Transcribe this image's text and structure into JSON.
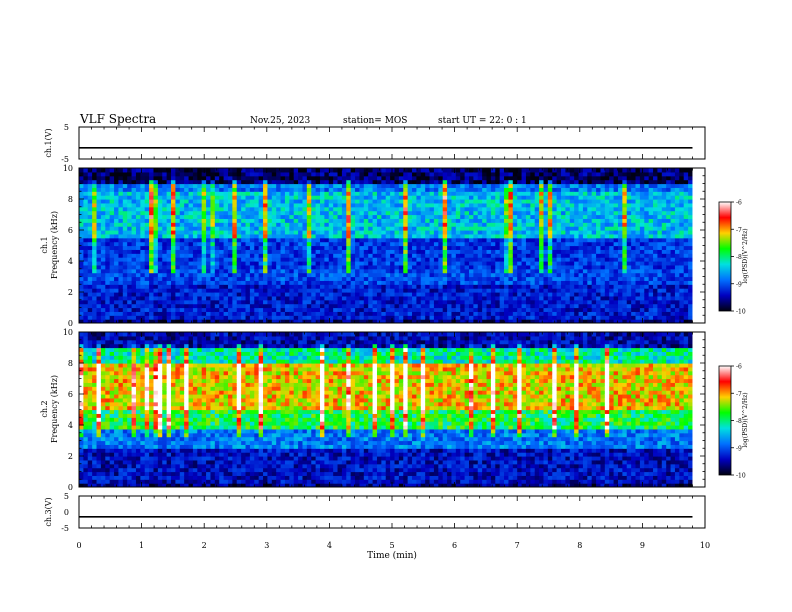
{
  "header": {
    "title": "VLF Spectra",
    "date": "Nov.25, 2023",
    "station": "station= MOS",
    "start": "start  UT =   22: 0  : 1"
  },
  "colorbar": {
    "label": "log(PSD)(V^2/Hz)",
    "ticks": [
      "-6",
      "-7",
      "-8",
      "-9",
      "-10"
    ],
    "stops": [
      "#ffffff",
      "#ff0000",
      "#ffd000",
      "#00ff00",
      "#00e0e0",
      "#0070ff",
      "#0000c0",
      "#000010"
    ]
  },
  "chart_data": [
    {
      "type": "line",
      "panel": "ch.1 waveform",
      "ylabel": "ch.1(V)",
      "ylim": [
        -5,
        5
      ],
      "yticks": [
        "5",
        "-5"
      ],
      "x": [
        0,
        9.8
      ],
      "y": [
        -1.5,
        -1.5
      ]
    },
    {
      "type": "heatmap",
      "panel": "ch.1 spectrogram",
      "ylabel": "ch.1\nFrequency (kHz)",
      "ylabel_lines": [
        "ch.1",
        "Frequency (kHz)"
      ],
      "ylim": [
        0,
        10
      ],
      "yticks": [
        "0",
        "2",
        "4",
        "6",
        "8",
        "10"
      ],
      "xlim": [
        0,
        10
      ],
      "data_xmax": 9.8,
      "value_range": [
        -10,
        -6
      ],
      "bands": [
        {
          "f": [
            0,
            0.3
          ],
          "v": -9.6
        },
        {
          "f": [
            0.3,
            2.5
          ],
          "v": -9.2
        },
        {
          "f": [
            2.5,
            3.5
          ],
          "v": -8.9
        },
        {
          "f": [
            3.5,
            5.5
          ],
          "v": -9.0
        },
        {
          "f": [
            5.5,
            8.5
          ],
          "v": -8.2
        },
        {
          "f": [
            8.5,
            9.0
          ],
          "v": -8.6
        },
        {
          "f": [
            9.0,
            10
          ],
          "v": -9.7
        }
      ]
    },
    {
      "type": "heatmap",
      "panel": "ch.2 spectrogram",
      "ylabel": "ch.2\nFrequency (kHz)",
      "ylabel_lines": [
        "ch.2",
        "Frequency (kHz)"
      ],
      "ylim": [
        0,
        10
      ],
      "yticks": [
        "0",
        "2",
        "4",
        "6",
        "8",
        "10"
      ],
      "xlim": [
        0,
        10
      ],
      "data_xmax": 9.8,
      "value_range": [
        -10,
        -6
      ],
      "bands": [
        {
          "f": [
            0,
            0.3
          ],
          "v": -9.6
        },
        {
          "f": [
            0.3,
            2.6
          ],
          "v": -9.3
        },
        {
          "f": [
            2.6,
            3.8
          ],
          "v": -8.6
        },
        {
          "f": [
            3.8,
            5.0
          ],
          "v": -7.6
        },
        {
          "f": [
            5.0,
            8.0
          ],
          "v": -6.9
        },
        {
          "f": [
            8.0,
            9.0
          ],
          "v": -7.9
        },
        {
          "f": [
            9.0,
            10
          ],
          "v": -9.4
        }
      ]
    },
    {
      "type": "line",
      "panel": "ch.3 waveform",
      "ylabel": "ch.3(V)",
      "ylim": [
        -5,
        5
      ],
      "yticks": [
        "5",
        "0",
        "-5"
      ],
      "xlabel": "Time (min)",
      "xlim": [
        0,
        10
      ],
      "xticks": [
        "0",
        "1",
        "2",
        "3",
        "4",
        "5",
        "6",
        "7",
        "8",
        "9",
        "10"
      ],
      "x": [
        0,
        9.8
      ],
      "y": [
        -1.5,
        -1.5
      ]
    }
  ]
}
